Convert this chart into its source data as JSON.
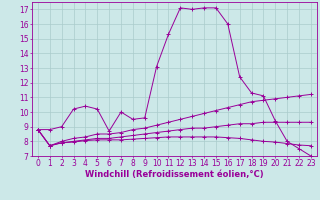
{
  "background_color": "#cce8e8",
  "line_color": "#990099",
  "grid_color": "#aacccc",
  "xlabel": "Windchill (Refroidissement éolien,°C)",
  "xlabel_color": "#990099",
  "ylim": [
    7,
    17.5
  ],
  "xlim": [
    -0.5,
    23.5
  ],
  "yticks": [
    7,
    8,
    9,
    10,
    11,
    12,
    13,
    14,
    15,
    16,
    17
  ],
  "xticks": [
    0,
    1,
    2,
    3,
    4,
    5,
    6,
    7,
    8,
    9,
    10,
    11,
    12,
    13,
    14,
    15,
    16,
    17,
    18,
    19,
    20,
    21,
    22,
    23
  ],
  "line1_x": [
    0,
    1,
    2,
    3,
    4,
    5,
    6,
    7,
    8,
    9,
    10,
    11,
    12,
    13,
    14,
    15,
    16,
    17,
    18,
    19,
    20,
    21,
    22,
    23
  ],
  "line1_y": [
    8.8,
    8.8,
    9.0,
    10.2,
    10.4,
    10.2,
    8.7,
    10.0,
    9.5,
    9.6,
    13.1,
    15.3,
    17.1,
    17.0,
    17.1,
    17.1,
    16.0,
    12.4,
    11.3,
    11.1,
    9.4,
    8.0,
    7.5,
    7.0
  ],
  "line2_x": [
    0,
    1,
    2,
    3,
    4,
    5,
    6,
    7,
    8,
    9,
    10,
    11,
    12,
    13,
    14,
    15,
    16,
    17,
    18,
    19,
    20,
    21,
    22,
    23
  ],
  "line2_y": [
    8.8,
    7.7,
    8.0,
    8.2,
    8.3,
    8.5,
    8.5,
    8.6,
    8.8,
    8.9,
    9.1,
    9.3,
    9.5,
    9.7,
    9.9,
    10.1,
    10.3,
    10.5,
    10.7,
    10.8,
    10.9,
    11.0,
    11.1,
    11.2
  ],
  "line3_x": [
    0,
    1,
    2,
    3,
    4,
    5,
    6,
    7,
    8,
    9,
    10,
    11,
    12,
    13,
    14,
    15,
    16,
    17,
    18,
    19,
    20,
    21,
    22,
    23
  ],
  "line3_y": [
    8.8,
    7.7,
    7.9,
    8.0,
    8.1,
    8.2,
    8.2,
    8.3,
    8.4,
    8.5,
    8.6,
    8.7,
    8.8,
    8.9,
    8.9,
    9.0,
    9.1,
    9.2,
    9.2,
    9.3,
    9.3,
    9.3,
    9.3,
    9.3
  ],
  "line4_x": [
    0,
    1,
    2,
    3,
    4,
    5,
    6,
    7,
    8,
    9,
    10,
    11,
    12,
    13,
    14,
    15,
    16,
    17,
    18,
    19,
    20,
    21,
    22,
    23
  ],
  "line4_y": [
    8.8,
    7.7,
    7.9,
    7.95,
    8.05,
    8.1,
    8.1,
    8.1,
    8.15,
    8.2,
    8.25,
    8.3,
    8.3,
    8.3,
    8.3,
    8.3,
    8.25,
    8.2,
    8.1,
    8.0,
    7.95,
    7.85,
    7.75,
    7.7
  ],
  "tick_fontsize": 5.5,
  "label_fontsize": 6.0
}
